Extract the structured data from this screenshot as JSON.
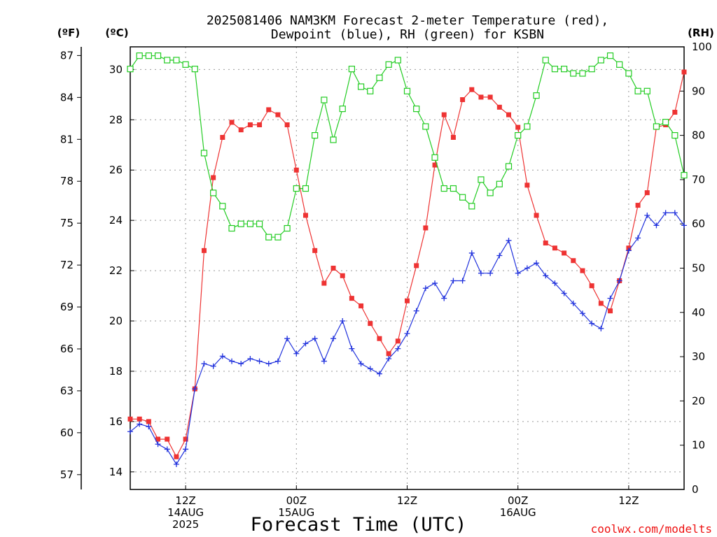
{
  "title_line1": "2025081406 NAM3KM Forecast 2-meter Temperature (red),",
  "title_line2": "Dewpoint (blue), RH (green) for KSBN",
  "left_unit_f": "(ºF)",
  "left_unit_c": "(ºC)",
  "right_unit": "(RH)",
  "x_title": "Forecast Time (UTC)",
  "credit": "coolwx.com/modelts",
  "colors": {
    "temperature": "#ee3333",
    "dewpoint": "#2233dd",
    "rh": "#22cc22",
    "grid": "#999999"
  },
  "chart_data": {
    "type": "line",
    "x_unit": "forecast hour from 2025081406",
    "xlim": [
      0,
      60
    ],
    "x_ticks": [
      {
        "x": 6,
        "lines": [
          "12Z",
          "14AUG",
          "2025"
        ]
      },
      {
        "x": 18,
        "lines": [
          "00Z",
          "15AUG"
        ]
      },
      {
        "x": 30,
        "lines": [
          "12Z"
        ]
      },
      {
        "x": 42,
        "lines": [
          "00Z",
          "16AUG"
        ]
      },
      {
        "x": 54,
        "lines": [
          "12Z"
        ]
      }
    ],
    "y_celsius": {
      "ylim": [
        13.3,
        30.9
      ],
      "ticks": [
        "14",
        "16",
        "18",
        "20",
        "22",
        "24",
        "26",
        "28",
        "30"
      ]
    },
    "y_fahrenheit": {
      "ticks": [
        "57",
        "60",
        "63",
        "66",
        "69",
        "72",
        "75",
        "78",
        "81",
        "84",
        "87"
      ]
    },
    "y_rh": {
      "ylim": [
        0,
        100
      ],
      "ticks": [
        "0",
        "10",
        "20",
        "30",
        "40",
        "50",
        "60",
        "70",
        "80",
        "90",
        "100"
      ]
    },
    "grid": true,
    "series": [
      {
        "name": "Temperature",
        "axis": "celsius",
        "marker": "filled-square",
        "x": [
          0,
          1,
          2,
          3,
          4,
          5,
          6,
          7,
          8,
          9,
          10,
          11,
          12,
          13,
          14,
          15,
          16,
          17,
          18,
          19,
          20,
          21,
          22,
          23,
          24,
          25,
          26,
          27,
          28,
          29,
          30,
          31,
          32,
          33,
          34,
          35,
          36,
          37,
          38,
          39,
          40,
          41,
          42,
          43,
          44,
          45,
          46,
          47,
          48,
          49,
          50,
          51,
          52,
          53,
          54,
          55,
          56,
          57,
          58,
          59,
          60
        ],
        "values": [
          16.1,
          16.1,
          16.0,
          15.3,
          15.3,
          14.6,
          15.3,
          17.3,
          22.8,
          25.7,
          27.3,
          27.9,
          27.6,
          27.8,
          27.8,
          28.4,
          28.2,
          27.8,
          26.0,
          24.2,
          22.8,
          21.5,
          22.1,
          21.8,
          20.9,
          20.6,
          19.9,
          19.3,
          18.7,
          19.2,
          20.8,
          22.2,
          23.7,
          26.2,
          28.2,
          27.3,
          28.8,
          29.2,
          28.9,
          28.9,
          28.5,
          28.2,
          27.7,
          25.4,
          24.2,
          23.1,
          22.9,
          22.7,
          22.4,
          22.0,
          21.4,
          20.7,
          20.4,
          21.6,
          22.9,
          24.6,
          25.1,
          27.7,
          27.8,
          28.3,
          29.9
        ]
      },
      {
        "name": "Dewpoint",
        "axis": "celsius",
        "marker": "plus",
        "x": [
          0,
          1,
          2,
          3,
          4,
          5,
          6,
          7,
          8,
          9,
          10,
          11,
          12,
          13,
          14,
          15,
          16,
          17,
          18,
          19,
          20,
          21,
          22,
          23,
          24,
          25,
          26,
          27,
          28,
          29,
          30,
          31,
          32,
          33,
          34,
          35,
          36,
          37,
          38,
          39,
          40,
          41,
          42,
          43,
          44,
          45,
          46,
          47,
          48,
          49,
          50,
          51,
          52,
          53,
          54,
          55,
          56,
          57,
          58,
          59,
          60
        ],
        "values": [
          15.6,
          15.9,
          15.8,
          15.1,
          14.9,
          14.3,
          14.9,
          17.3,
          18.3,
          18.2,
          18.6,
          18.4,
          18.3,
          18.5,
          18.4,
          18.3,
          18.4,
          19.3,
          18.7,
          19.1,
          19.3,
          18.4,
          19.3,
          20.0,
          18.9,
          18.3,
          18.1,
          17.9,
          18.5,
          18.9,
          19.5,
          20.4,
          21.3,
          21.5,
          20.9,
          21.6,
          21.6,
          22.7,
          21.9,
          21.9,
          22.6,
          23.2,
          21.9,
          22.1,
          22.3,
          21.8,
          21.5,
          21.1,
          20.7,
          20.3,
          19.9,
          19.7,
          20.9,
          21.6,
          22.8,
          23.3,
          24.2,
          23.8,
          24.3,
          24.3,
          23.8
        ]
      },
      {
        "name": "RH",
        "axis": "rh",
        "marker": "open-square",
        "x": [
          0,
          1,
          2,
          3,
          4,
          5,
          6,
          7,
          8,
          9,
          10,
          11,
          12,
          13,
          14,
          15,
          16,
          17,
          18,
          19,
          20,
          21,
          22,
          23,
          24,
          25,
          26,
          27,
          28,
          29,
          30,
          31,
          32,
          33,
          34,
          35,
          36,
          37,
          38,
          39,
          40,
          41,
          42,
          43,
          44,
          45,
          46,
          47,
          48,
          49,
          50,
          51,
          52,
          53,
          54,
          55,
          56,
          57,
          58,
          59,
          60
        ],
        "values": [
          95,
          98,
          98,
          98,
          97,
          97,
          96,
          95,
          76,
          67,
          64,
          59,
          60,
          60,
          60,
          57,
          57,
          59,
          68,
          68,
          80,
          88,
          79,
          86,
          95,
          91,
          90,
          93,
          96,
          97,
          90,
          86,
          82,
          75,
          68,
          68,
          66,
          64,
          70,
          67,
          69,
          73,
          80,
          82,
          89,
          97,
          95,
          95,
          94,
          94,
          95,
          97,
          98,
          96,
          94,
          90,
          90,
          82,
          83,
          80,
          71
        ]
      }
    ]
  }
}
